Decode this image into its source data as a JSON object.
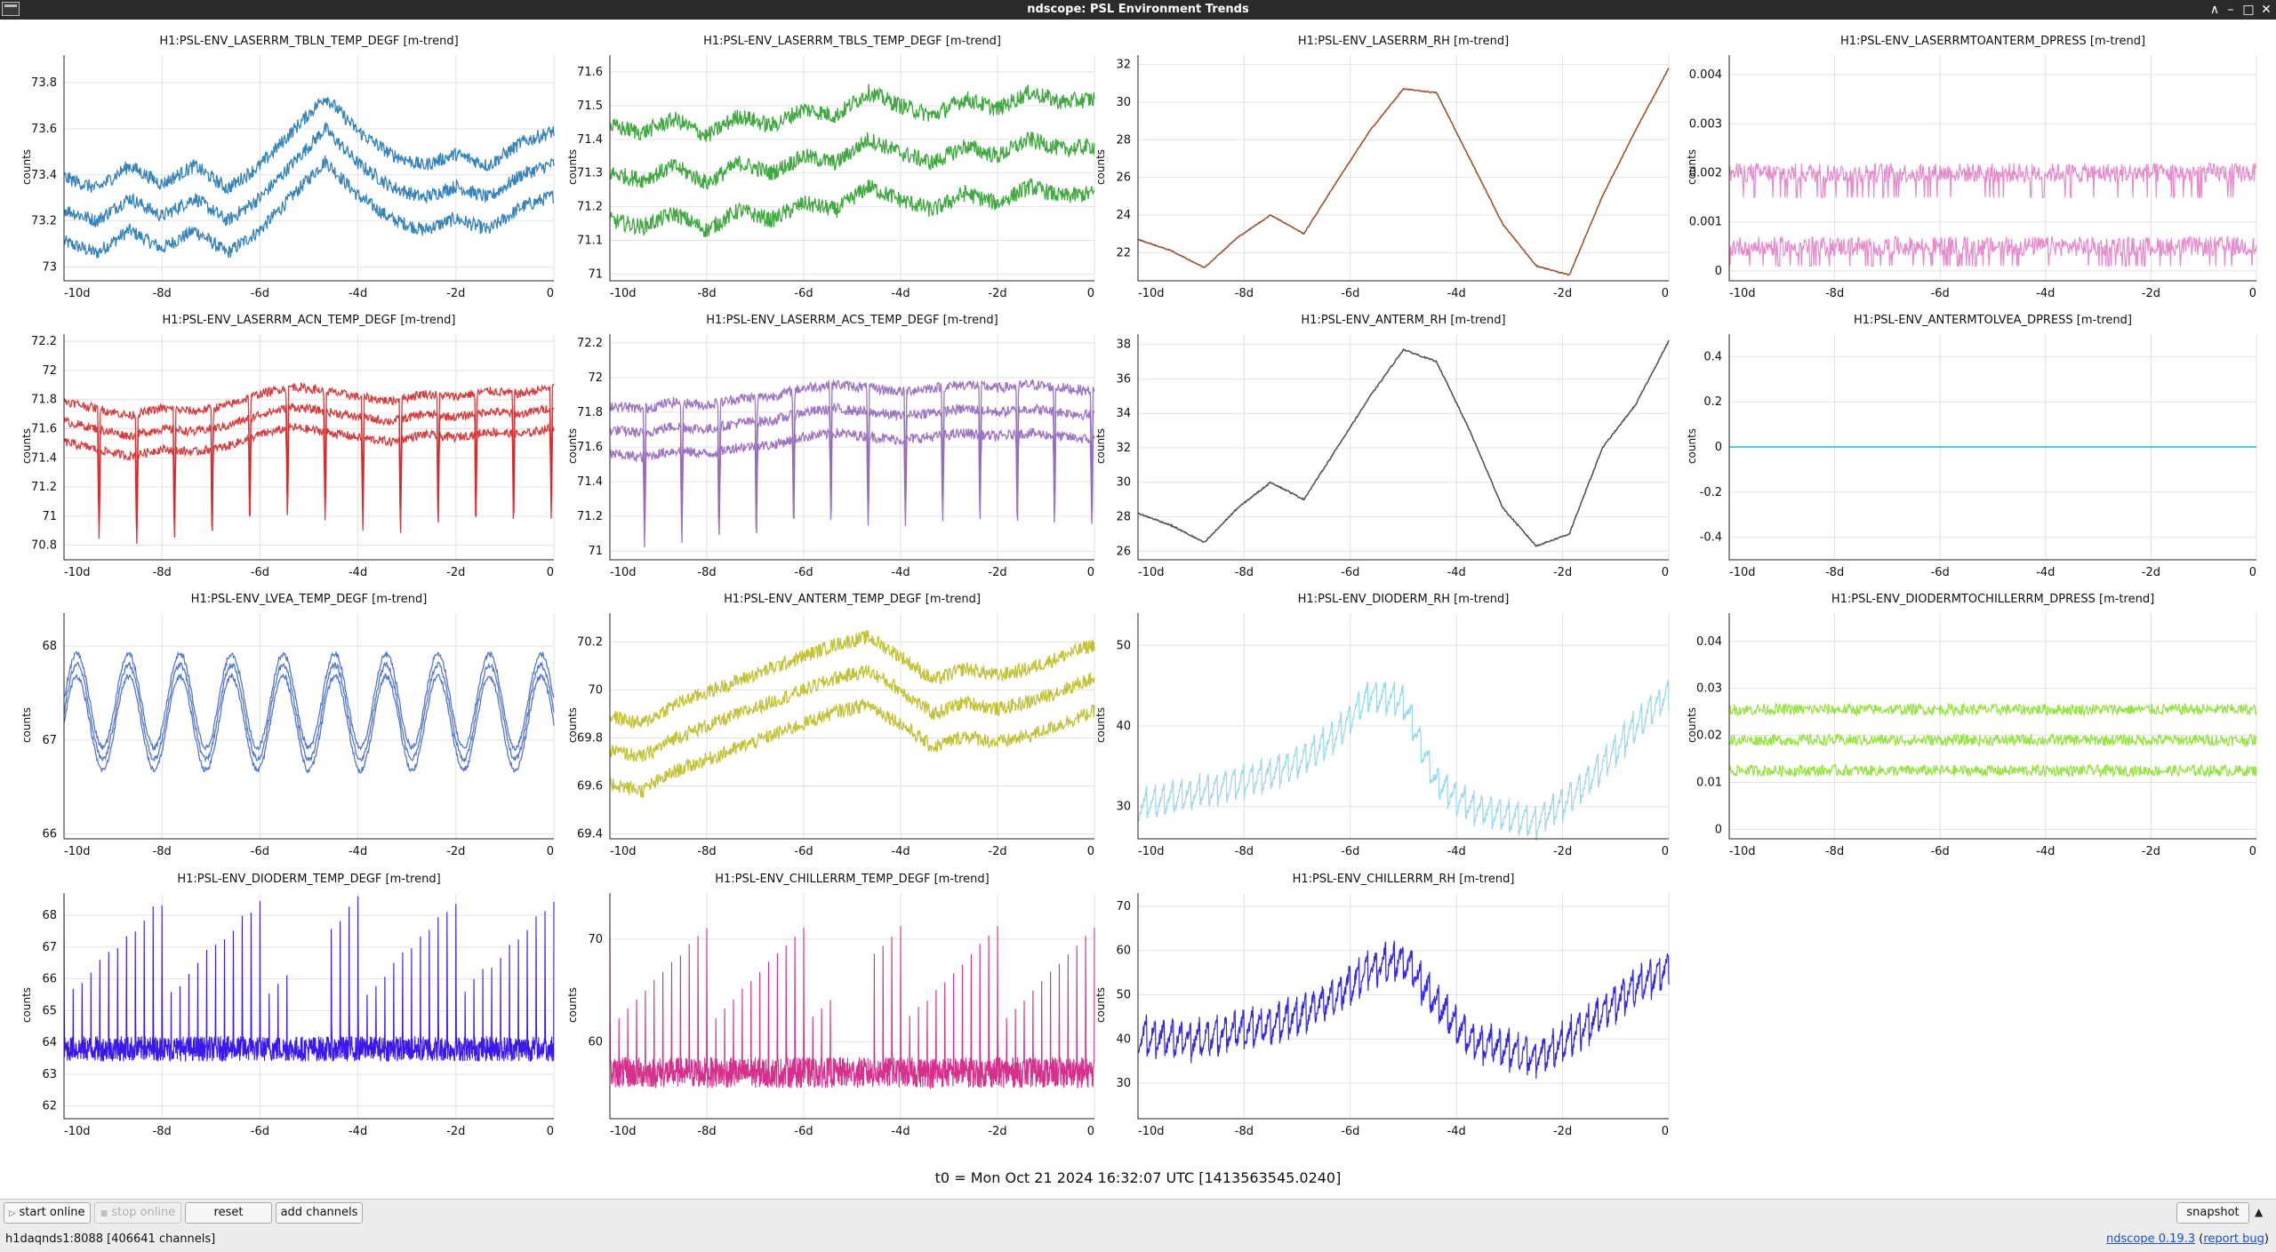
{
  "window": {
    "title": "ndscope: PSL Environment Trends"
  },
  "plots": [
    {
      "title": "H1:PSL-ENV_LASERRM_TBLN_TEMP_DEGF [m-trend]",
      "ylabel": "counts",
      "yticks": [
        73,
        73.2,
        73.4,
        73.6,
        73.8
      ],
      "ylim": [
        72.94,
        73.92
      ],
      "color": "#1f77b4",
      "style": "band3",
      "base": [
        73.25,
        73.2,
        73.3,
        73.22,
        73.3,
        73.2,
        73.3,
        73.45,
        73.6,
        73.45,
        73.35,
        73.3,
        73.35,
        73.3,
        73.4,
        73.45
      ],
      "offset": 0.14,
      "noise": 0.03,
      "xticks": [
        "-10d",
        "-8d",
        "-6d",
        "-4d",
        "-2d",
        "0"
      ]
    },
    {
      "title": "H1:PSL-ENV_LASERRM_TBLS_TEMP_DEGF [m-trend]",
      "ylabel": "counts",
      "yticks": [
        71,
        71.1,
        71.2,
        71.3,
        71.4,
        71.5,
        71.6
      ],
      "ylim": [
        70.98,
        71.65
      ],
      "color": "#2ca02c",
      "style": "band3",
      "base": [
        71.3,
        71.28,
        71.32,
        71.27,
        71.33,
        71.3,
        71.35,
        71.33,
        71.4,
        71.36,
        71.33,
        71.38,
        71.35,
        71.4,
        71.37,
        71.38
      ],
      "offset": 0.14,
      "noise": 0.025,
      "xticks": [
        "-10d",
        "-8d",
        "-6d",
        "-4d",
        "-2d",
        "0"
      ]
    },
    {
      "title": "H1:PSL-ENV_LASERRM_RH [m-trend]",
      "ylabel": "counts",
      "yticks": [
        22,
        24,
        26,
        28,
        30,
        32
      ],
      "ylim": [
        20.5,
        32.5
      ],
      "color": "#a0522d",
      "style": "line",
      "base": [
        22.7,
        22.1,
        21.2,
        22.8,
        24,
        23,
        25.8,
        28.5,
        30.7,
        30.5,
        27,
        23.5,
        21.3,
        20.8,
        25,
        28.5,
        31.8
      ],
      "offset": 0,
      "noise": 0.05,
      "xticks": [
        "-10d",
        "-8d",
        "-6d",
        "-4d",
        "-2d",
        "0"
      ]
    },
    {
      "title": "H1:PSL-ENV_LASERRMTOANTERM_DPRESS [m-trend]",
      "ylabel": "counts",
      "yticks": [
        0,
        0.001,
        0.002,
        0.003,
        0.004
      ],
      "ylim": [
        -0.0002,
        0.0044
      ],
      "color": "#e377c2",
      "style": "dpress",
      "base": [
        0.0005,
        0.0005,
        0.0005,
        0.0005,
        0.0005
      ],
      "offset": 0.0015,
      "noise": 0.0001,
      "xticks": [
        "-10d",
        "-8d",
        "-6d",
        "-4d",
        "-2d",
        "0"
      ]
    },
    {
      "title": "H1:PSL-ENV_LASERRM_ACN_TEMP_DEGF [m-trend]",
      "ylabel": "counts",
      "yticks": [
        70.8,
        71,
        71.2,
        71.4,
        71.6,
        71.8,
        72,
        72.2
      ],
      "ylim": [
        70.7,
        72.25
      ],
      "color": "#d62728",
      "style": "band3dips",
      "base": [
        71.65,
        71.6,
        71.55,
        71.6,
        71.58,
        71.62,
        71.7,
        71.75,
        71.72,
        71.68,
        71.65,
        71.7,
        71.68,
        71.72,
        71.7,
        71.75
      ],
      "offset": 0.14,
      "noise": 0.03,
      "xticks": [
        "-10d",
        "-8d",
        "-6d",
        "-4d",
        "-2d",
        "0"
      ]
    },
    {
      "title": "H1:PSL-ENV_LASERRM_ACS_TEMP_DEGF [m-trend]",
      "ylabel": "counts",
      "yticks": [
        71,
        71.2,
        71.4,
        71.6,
        71.8,
        72,
        72.2
      ],
      "ylim": [
        70.95,
        72.25
      ],
      "color": "#9467bd",
      "style": "band3dips",
      "base": [
        71.7,
        71.68,
        71.72,
        71.7,
        71.74,
        71.75,
        71.8,
        71.82,
        71.8,
        71.78,
        71.8,
        71.82,
        71.8,
        71.82,
        71.8,
        71.78
      ],
      "offset": 0.14,
      "noise": 0.03,
      "xticks": [
        "-10d",
        "-8d",
        "-6d",
        "-4d",
        "-2d",
        "0"
      ]
    },
    {
      "title": "H1:PSL-ENV_ANTERM_RH [m-trend]",
      "ylabel": "counts",
      "yticks": [
        26,
        28,
        30,
        32,
        34,
        36,
        38
      ],
      "ylim": [
        25.5,
        38.6
      ],
      "color": "#555555",
      "style": "line",
      "base": [
        28.2,
        27.5,
        26.5,
        28.5,
        30,
        29,
        32,
        35,
        37.7,
        37,
        33,
        28.5,
        26.3,
        27,
        32,
        34.5,
        38.2
      ],
      "offset": 0,
      "noise": 0.08,
      "xticks": [
        "-10d",
        "-8d",
        "-6d",
        "-4d",
        "-2d",
        "0"
      ]
    },
    {
      "title": "H1:PSL-ENV_ANTERMTOLVEA_DPRESS [m-trend]",
      "ylabel": "counts",
      "yticks": [
        -0.4,
        -0.2,
        0,
        0.2,
        0.4
      ],
      "ylim": [
        -0.5,
        0.5
      ],
      "color": "#17becf",
      "style": "flat",
      "base": [
        0,
        0
      ],
      "offset": 0,
      "noise": 0,
      "xticks": [
        "-10d",
        "-8d",
        "-6d",
        "-4d",
        "-2d",
        "0"
      ]
    },
    {
      "title": "H1:PSL-ENV_LVEA_TEMP_DEGF [m-trend]",
      "ylabel": "counts",
      "yticks": [
        66,
        67,
        68
      ],
      "ylim": [
        65.95,
        68.35
      ],
      "color": "#4169c8",
      "style": "band3osc",
      "base": [
        67.3,
        67.3
      ],
      "offset": 0.12,
      "noise": 0.03,
      "xticks": [
        "-10d",
        "-8d",
        "-6d",
        "-4d",
        "-2d",
        "0"
      ]
    },
    {
      "title": "H1:PSL-ENV_ANTERM_TEMP_DEGF [m-trend]",
      "ylabel": "counts",
      "yticks": [
        69.4,
        69.6,
        69.8,
        70,
        70.2
      ],
      "ylim": [
        69.38,
        70.32
      ],
      "color": "#bcbd22",
      "style": "band3",
      "base": [
        69.75,
        69.72,
        69.8,
        69.85,
        69.9,
        69.95,
        70,
        70.05,
        70.08,
        70,
        69.9,
        69.95,
        69.92,
        69.95,
        70,
        70.05
      ],
      "offset": 0.14,
      "noise": 0.03,
      "xticks": [
        "-10d",
        "-8d",
        "-6d",
        "-4d",
        "-2d",
        "0"
      ]
    },
    {
      "title": "H1:PSL-ENV_DIODERM_RH [m-trend]",
      "ylabel": "counts",
      "yticks": [
        30,
        40,
        50
      ],
      "ylim": [
        26,
        54
      ],
      "color": "#9ad8f0",
      "style": "saw",
      "base": [
        32,
        33,
        34,
        35,
        36,
        38,
        41,
        46,
        45,
        35,
        32,
        31,
        30,
        33,
        37,
        42,
        46
      ],
      "offset": 4,
      "noise": 0.5,
      "xticks": [
        "-10d",
        "-8d",
        "-6d",
        "-4d",
        "-2d",
        "0"
      ]
    },
    {
      "title": "H1:PSL-ENV_DIODERMTOCHILLERRM_DPRESS [m-trend]",
      "ylabel": "counts",
      "yticks": [
        0,
        0.01,
        0.02,
        0.03,
        0.04
      ],
      "ylim": [
        -0.002,
        0.046
      ],
      "color": "#8be22e",
      "style": "band3",
      "base": [
        0.019,
        0.019,
        0.019,
        0.019,
        0.019
      ],
      "offset": 0.0065,
      "noise": 0.0012,
      "xticks": [
        "-10d",
        "-8d",
        "-6d",
        "-4d",
        "-2d",
        "0"
      ]
    },
    {
      "title": "H1:PSL-ENV_DIODERM_TEMP_DEGF [m-trend]",
      "ylabel": "counts",
      "yticks": [
        62,
        63,
        64,
        65,
        66,
        67,
        68
      ],
      "ylim": [
        61.6,
        68.7
      ],
      "color": "#3a19f0",
      "style": "spikes",
      "base": [
        63.8,
        63.8
      ],
      "offset": 4.5,
      "noise": 0.4,
      "xticks": [
        "-10d",
        "-8d",
        "-6d",
        "-4d",
        "-2d",
        "0"
      ]
    },
    {
      "title": "H1:PSL-ENV_CHILLERRM_TEMP_DEGF [m-trend]",
      "ylabel": "counts",
      "yticks": [
        60,
        70
      ],
      "ylim": [
        52.5,
        74.5
      ],
      "color": "#d62f8c",
      "style": "spikes",
      "base": [
        57,
        57
      ],
      "offset": 14,
      "noise": 1.5,
      "xticks": [
        "-10d",
        "-8d",
        "-6d",
        "-4d",
        "-2d",
        "0"
      ]
    },
    {
      "title": "H1:PSL-ENV_CHILLERRM_RH [m-trend]",
      "ylabel": "counts",
      "yticks": [
        30,
        40,
        50,
        60,
        70
      ],
      "ylim": [
        22,
        73
      ],
      "color": "#3428e6",
      "style": "saw",
      "base": [
        45,
        44,
        44,
        46,
        47,
        50,
        54,
        60,
        62,
        52,
        44,
        42,
        40,
        44,
        50,
        56,
        60
      ],
      "offset": 8,
      "noise": 1.5,
      "xticks": [
        "-10d",
        "-8d",
        "-6d",
        "-4d",
        "-2d",
        "0"
      ]
    }
  ],
  "t0_label": "t0 = Mon Oct 21 2024 16:32:07 UTC [1413563545.0240]",
  "toolbar": {
    "start_online": "start online",
    "stop_online": "stop online",
    "reset": "reset",
    "add_channels": "add channels",
    "snapshot": "snapshot"
  },
  "status": {
    "server": "h1daqnds1:8088  [406641 channels]",
    "app_name": "ndscope",
    "version": "0.19.3",
    "report_bug": "report bug"
  }
}
